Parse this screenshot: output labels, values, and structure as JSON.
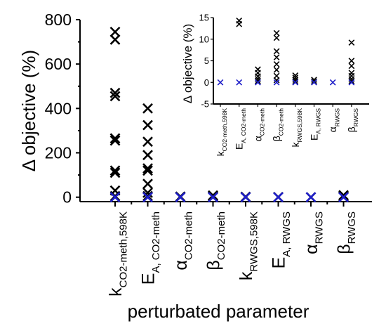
{
  "chart_data": [
    {
      "type": "scatter",
      "title": "",
      "xlabel": "perturbated parameter",
      "ylabel": "Δ objective (%)",
      "ylim": [
        -20,
        800
      ],
      "yticks": [
        0,
        200,
        400,
        600,
        800
      ],
      "grid": false,
      "legend": "none",
      "categories": [
        {
          "base": "k",
          "sub": "CO2-meth,598K"
        },
        {
          "base": "E",
          "sub": "A, CO2-meth"
        },
        {
          "base": "α",
          "sub": "CO2-meth"
        },
        {
          "base": "β",
          "sub": "CO2-meth"
        },
        {
          "base": "k",
          "sub": "RWGS,598K"
        },
        {
          "base": "E",
          "sub": "A, RWGS"
        },
        {
          "base": "α",
          "sub": "RWGS"
        },
        {
          "base": "β",
          "sub": "RWGS"
        }
      ],
      "series": [
        {
          "color": "#000000",
          "marker": "x",
          "points": [
            [
              1,
              745
            ],
            [
              1,
              710
            ],
            [
              1,
              470
            ],
            [
              1,
              455
            ],
            [
              1,
              265
            ],
            [
              1,
              255
            ],
            [
              1,
              120
            ],
            [
              1,
              110
            ],
            [
              1,
              30
            ],
            [
              1,
              5
            ],
            [
              2,
              400
            ],
            [
              2,
              325
            ],
            [
              2,
              250
            ],
            [
              2,
              190
            ],
            [
              2,
              130
            ],
            [
              2,
              120
            ],
            [
              2,
              60
            ],
            [
              2,
              20
            ],
            [
              2,
              5
            ],
            [
              3,
              3
            ],
            [
              3,
              1
            ],
            [
              4,
              8
            ],
            [
              4,
              5
            ],
            [
              4,
              2
            ],
            [
              5,
              2
            ],
            [
              6,
              1
            ],
            [
              7,
              0
            ],
            [
              8,
              9
            ],
            [
              8,
              4
            ],
            [
              8,
              1
            ]
          ]
        },
        {
          "color": "#1f1fc8",
          "marker": "x",
          "points": [
            [
              1,
              0
            ],
            [
              2,
              0
            ],
            [
              3,
              0
            ],
            [
              4,
              0
            ],
            [
              5,
              0
            ],
            [
              6,
              0
            ],
            [
              7,
              0
            ],
            [
              8,
              0
            ]
          ]
        }
      ]
    },
    {
      "type": "scatter",
      "title": "",
      "xlabel": "",
      "ylabel": "Δ objective (%)",
      "ylim": [
        -5,
        15
      ],
      "yticks": [
        -5,
        0,
        5,
        10,
        15
      ],
      "grid": false,
      "legend": "none",
      "categories": [
        {
          "base": "k",
          "sub": "CO2-meth,598K"
        },
        {
          "base": "E",
          "sub": "A, CO2-meth"
        },
        {
          "base": "α",
          "sub": "CO2-meth"
        },
        {
          "base": "β",
          "sub": "CO2-meth"
        },
        {
          "base": "k",
          "sub": "RWGS,598K"
        },
        {
          "base": "E",
          "sub": "A, RWGS"
        },
        {
          "base": "α",
          "sub": "RWGS"
        },
        {
          "base": "β",
          "sub": "RWGS"
        }
      ],
      "series": [
        {
          "color": "#000000",
          "marker": "x",
          "points": [
            [
              2,
              14.3
            ],
            [
              2,
              13.5
            ],
            [
              3,
              3.0
            ],
            [
              3,
              2.2
            ],
            [
              3,
              1.4
            ],
            [
              3,
              0.8
            ],
            [
              3,
              0.3
            ],
            [
              4,
              11.4
            ],
            [
              4,
              10.3
            ],
            [
              4,
              7.2
            ],
            [
              4,
              5.8
            ],
            [
              4,
              4.2
            ],
            [
              4,
              2.9
            ],
            [
              4,
              1.5
            ],
            [
              4,
              0.5
            ],
            [
              5,
              1.6
            ],
            [
              5,
              1.1
            ],
            [
              5,
              0.6
            ],
            [
              5,
              0.2
            ],
            [
              6,
              0.6
            ],
            [
              6,
              0.2
            ],
            [
              8,
              9.2
            ],
            [
              8,
              5.0
            ],
            [
              8,
              3.8
            ],
            [
              8,
              2.2
            ],
            [
              8,
              1.5
            ],
            [
              8,
              0.8
            ],
            [
              8,
              0.3
            ]
          ]
        },
        {
          "color": "#1f1fc8",
          "marker": "x",
          "points": [
            [
              1,
              0
            ],
            [
              2,
              0
            ],
            [
              3,
              0
            ],
            [
              4,
              0
            ],
            [
              5,
              0
            ],
            [
              6,
              0
            ],
            [
              7,
              0
            ],
            [
              8,
              0
            ]
          ]
        }
      ]
    }
  ]
}
